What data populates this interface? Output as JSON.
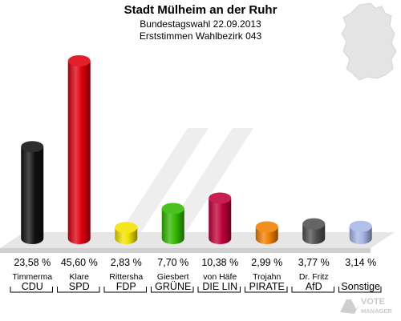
{
  "title": {
    "main": "Stadt Mülheim an der Ruhr",
    "subtitle1": "Bundestagswahl 22.09.2013",
    "subtitle2": "Erststimmen Wahlbezirk 043"
  },
  "watermark": {
    "text": "VOTE MANAGER",
    "icon": "vote-manager-logo"
  },
  "chart_data": {
    "type": "bar",
    "style": "3d-cylinder",
    "categories": [
      "CDU",
      "SPD",
      "FDP",
      "GRÜNE",
      "DIE LINKE",
      "PIRATEN",
      "AfD",
      "Sonstige"
    ],
    "candidates": [
      "Timmerma",
      "Klare",
      "Rittersha",
      "Giesbert",
      "von Häfe",
      "Trojahn",
      "Dr. Fritz",
      ""
    ],
    "party_labels": [
      "CDU",
      "SPD",
      "FDP",
      "GRÜNE",
      "DIE LIN",
      "PIRATE",
      "AfD",
      "Sonstige"
    ],
    "values": [
      23.58,
      45.6,
      2.83,
      7.7,
      10.38,
      2.99,
      3.77,
      3.14
    ],
    "value_labels": [
      "23,58 %",
      "45,60 %",
      "2,83 %",
      "7,70 %",
      "10,38 %",
      "2,99 %",
      "3,77 %",
      "3,14 %"
    ],
    "colors": [
      "#111111",
      "#e0000f",
      "#f2e200",
      "#33b800",
      "#c0003a",
      "#f08000",
      "#505050",
      "#a8b6e6"
    ],
    "ylim": [
      0,
      50
    ],
    "grid": false
  }
}
